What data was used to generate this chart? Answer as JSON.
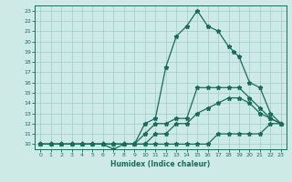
{
  "title": "",
  "xlabel": "Humidex (Indice chaleur)",
  "bg_color": "#cdeae6",
  "grid_color": "#9ecdc7",
  "line_color": "#1a6b5a",
  "xlim": [
    -0.5,
    23.5
  ],
  "ylim": [
    9.5,
    23.5
  ],
  "xticks": [
    0,
    1,
    2,
    3,
    4,
    5,
    6,
    7,
    8,
    9,
    10,
    11,
    12,
    13,
    14,
    15,
    16,
    17,
    18,
    19,
    20,
    21,
    22,
    23
  ],
  "yticks": [
    10,
    11,
    12,
    13,
    14,
    15,
    16,
    17,
    18,
    19,
    20,
    21,
    22,
    23
  ],
  "lines": [
    {
      "x": [
        0,
        1,
        2,
        3,
        4,
        5,
        6,
        7,
        8,
        9,
        10,
        11,
        12,
        13,
        14,
        15,
        16,
        17,
        18,
        19,
        20,
        21,
        22,
        23
      ],
      "y": [
        10,
        10,
        10,
        10,
        10,
        10,
        10,
        10,
        10,
        10,
        10,
        10,
        10,
        10,
        10,
        10,
        10,
        11,
        11,
        11,
        11,
        11,
        12,
        12
      ]
    },
    {
      "x": [
        0,
        1,
        2,
        3,
        4,
        5,
        6,
        7,
        8,
        9,
        10,
        11,
        12,
        13,
        14,
        15,
        16,
        17,
        18,
        19,
        20,
        21,
        22,
        23
      ],
      "y": [
        10,
        10,
        10,
        10,
        10,
        10,
        10,
        10,
        10,
        10,
        10,
        11,
        11,
        12,
        12,
        13,
        13.5,
        14,
        14.5,
        14.5,
        14,
        13,
        12.5,
        12
      ]
    },
    {
      "x": [
        0,
        1,
        2,
        3,
        4,
        5,
        6,
        7,
        8,
        9,
        10,
        11,
        12,
        13,
        14,
        15,
        16,
        17,
        18,
        19,
        20,
        21,
        22,
        23
      ],
      "y": [
        10,
        10,
        10,
        10,
        10,
        10,
        10,
        9.5,
        10,
        10,
        11,
        12,
        12,
        12.5,
        12.5,
        15.5,
        15.5,
        15.5,
        15.5,
        15.5,
        14.5,
        13.5,
        12.5,
        12
      ]
    },
    {
      "x": [
        0,
        1,
        2,
        3,
        4,
        5,
        6,
        7,
        8,
        9,
        10,
        11,
        12,
        13,
        14,
        15,
        16,
        17,
        18,
        18.5,
        19,
        20,
        21,
        22,
        23
      ],
      "y": [
        10,
        10,
        10,
        10,
        10,
        10,
        10,
        10,
        10,
        10,
        12,
        12.5,
        17.5,
        20.5,
        21.5,
        23,
        21.5,
        21,
        19.5,
        19,
        18.5,
        16,
        15.5,
        13,
        12
      ]
    }
  ]
}
